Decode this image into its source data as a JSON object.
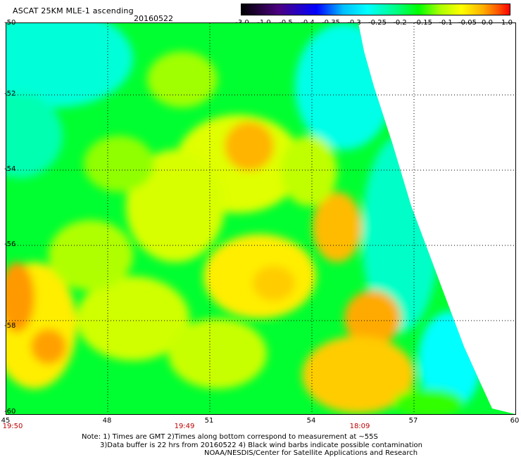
{
  "header": {
    "title": "ASCAT 25KM MLE-1 ascending",
    "date": "20160522"
  },
  "colorbar": {
    "ticks": [
      "-3.0",
      "-1.0",
      "-0.5",
      "-0.4",
      "-0.35",
      "-0.3",
      "-0.25",
      "-0.2",
      "-0.15",
      "-0.1",
      "-0.05",
      "0.0",
      "1.0"
    ],
    "colors": [
      "#000000",
      "#4b0082",
      "#0000ff",
      "#00bfff",
      "#00ffff",
      "#00ff80",
      "#00ff00",
      "#aaff00",
      "#ffff00",
      "#ffb000",
      "#ff5000",
      "#ff0000"
    ]
  },
  "map": {
    "y_labels": [
      "-50",
      "-52",
      "-54",
      "-56",
      "-58",
      "-60"
    ],
    "x_labels": [
      "45",
      "48",
      "51",
      "54",
      "57",
      "60"
    ],
    "time_labels": [
      "19:50",
      "19:49",
      "18:09"
    ],
    "lat_range": [
      -60,
      -50
    ],
    "lon_range": [
      45,
      60
    ],
    "grid": "dotted",
    "colors": {
      "cyan": "#00ffe0",
      "green": "#00ff20",
      "lime": "#a0ff00",
      "yellow": "#ffff00",
      "orange": "#ff9900",
      "time_label": "#c00000"
    }
  },
  "footer": {
    "line1": "Note: 1) Times are GMT 2)Times along bottom correspond to measurement at ~55S",
    "line2": "3)Data buffer is 22 hrs from 20160522 4) Black wind barbs indicate possible contamination",
    "line3": "NOAA/NESDIS/Center for Satellite Applications and Research"
  }
}
